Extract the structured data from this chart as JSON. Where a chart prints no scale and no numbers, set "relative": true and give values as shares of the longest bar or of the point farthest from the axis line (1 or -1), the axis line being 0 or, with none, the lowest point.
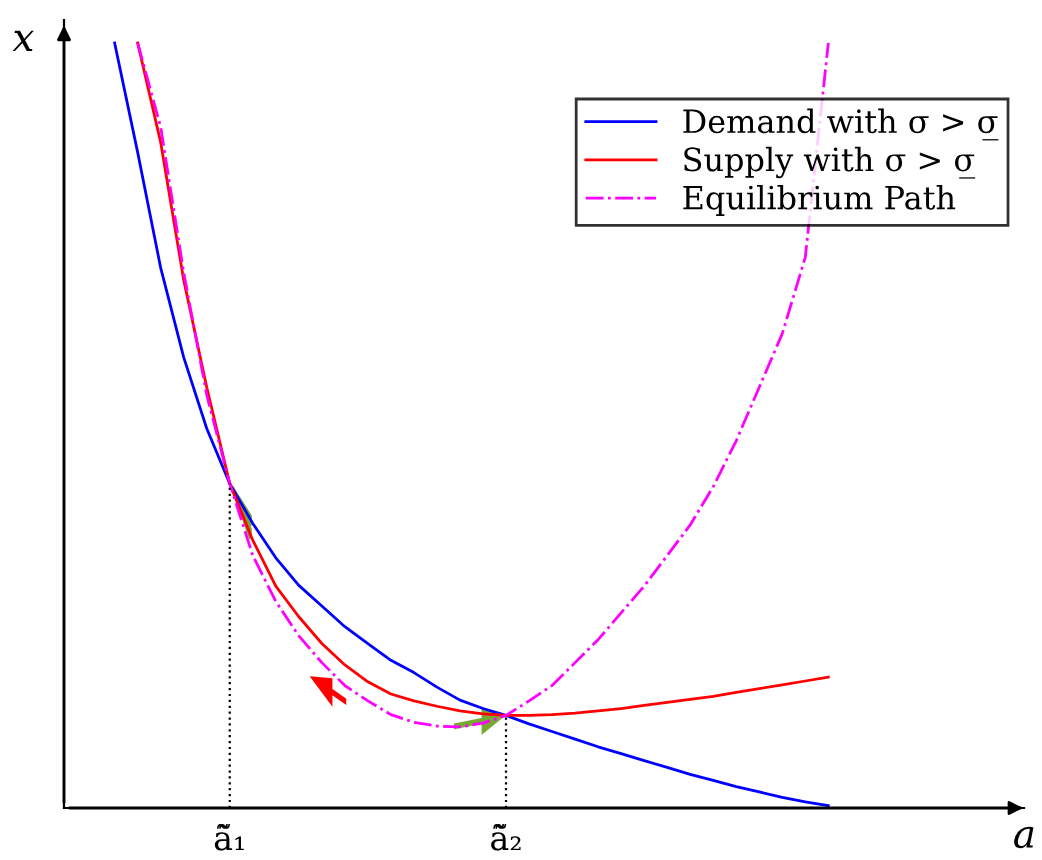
{
  "chart_data": {
    "type": "line",
    "relative": true,
    "xlabel": "a",
    "ylabel": "x",
    "categories": [
      null,
      null,
      null,
      null,
      null,
      null,
      "ã̃₁",
      null,
      null,
      null,
      null,
      null,
      null,
      null,
      null,
      null,
      null,
      null,
      "ã̃₂",
      null,
      null,
      null,
      null,
      null,
      null,
      null,
      null,
      null,
      null,
      null,
      null,
      null,
      null,
      null
    ],
    "legend": "top right",
    "grid": false,
    "marker": "none",
    "line_style": "solid",
    "ref_lines": [
      {
        "axis": "x",
        "value": "ã̃₁",
        "line_style": "dotted",
        "color": "#000000"
      },
      {
        "axis": "x",
        "value": "ã̃₂",
        "line_style": "dotted",
        "color": "#000000"
      }
    ],
    "series": [
      {
        "name": "Demand with σ > σ̲",
        "color": "#0000ff",
        "values": [
          null,
          1.0,
          0.857,
          0.706,
          0.589,
          0.496,
          0.424,
          0.372,
          0.327,
          0.291,
          0.264,
          0.237,
          0.215,
          0.193,
          0.177,
          0.158,
          0.141,
          0.13,
          0.121,
          0.11,
          0.1,
          0.09,
          0.08,
          0.071,
          0.062,
          0.053,
          0.044,
          0.036,
          0.028,
          0.021,
          0.014,
          0.008,
          0.003,
          null
        ]
      },
      {
        "name": "Supply with σ > σ̲",
        "color": "#ff0000",
        "values": [
          null,
          null,
          1.0,
          0.87,
          0.69,
          0.55,
          0.424,
          0.35,
          0.29,
          0.25,
          0.215,
          0.187,
          0.165,
          0.149,
          0.14,
          0.133,
          0.127,
          0.123,
          0.121,
          0.121,
          0.122,
          0.124,
          0.127,
          0.13,
          0.134,
          0.138,
          0.142,
          0.146,
          0.151,
          0.156,
          0.161,
          0.166,
          0.171,
          null
        ]
      },
      {
        "name": "Equilibrium Path",
        "color": "#ff00ff",
        "line_style": "dashdot",
        "values": [
          null,
          null,
          1.0,
          0.89,
          0.7,
          0.54,
          0.424,
          0.33,
          0.27,
          0.225,
          0.19,
          0.16,
          0.14,
          0.122,
          0.112,
          0.107,
          0.106,
          0.111,
          0.121,
          0.14,
          0.16,
          0.19,
          0.22,
          0.255,
          0.29,
          0.33,
          0.37,
          0.42,
          0.48,
          0.55,
          0.62,
          0.72,
          1.0,
          null
        ]
      }
    ]
  }
}
